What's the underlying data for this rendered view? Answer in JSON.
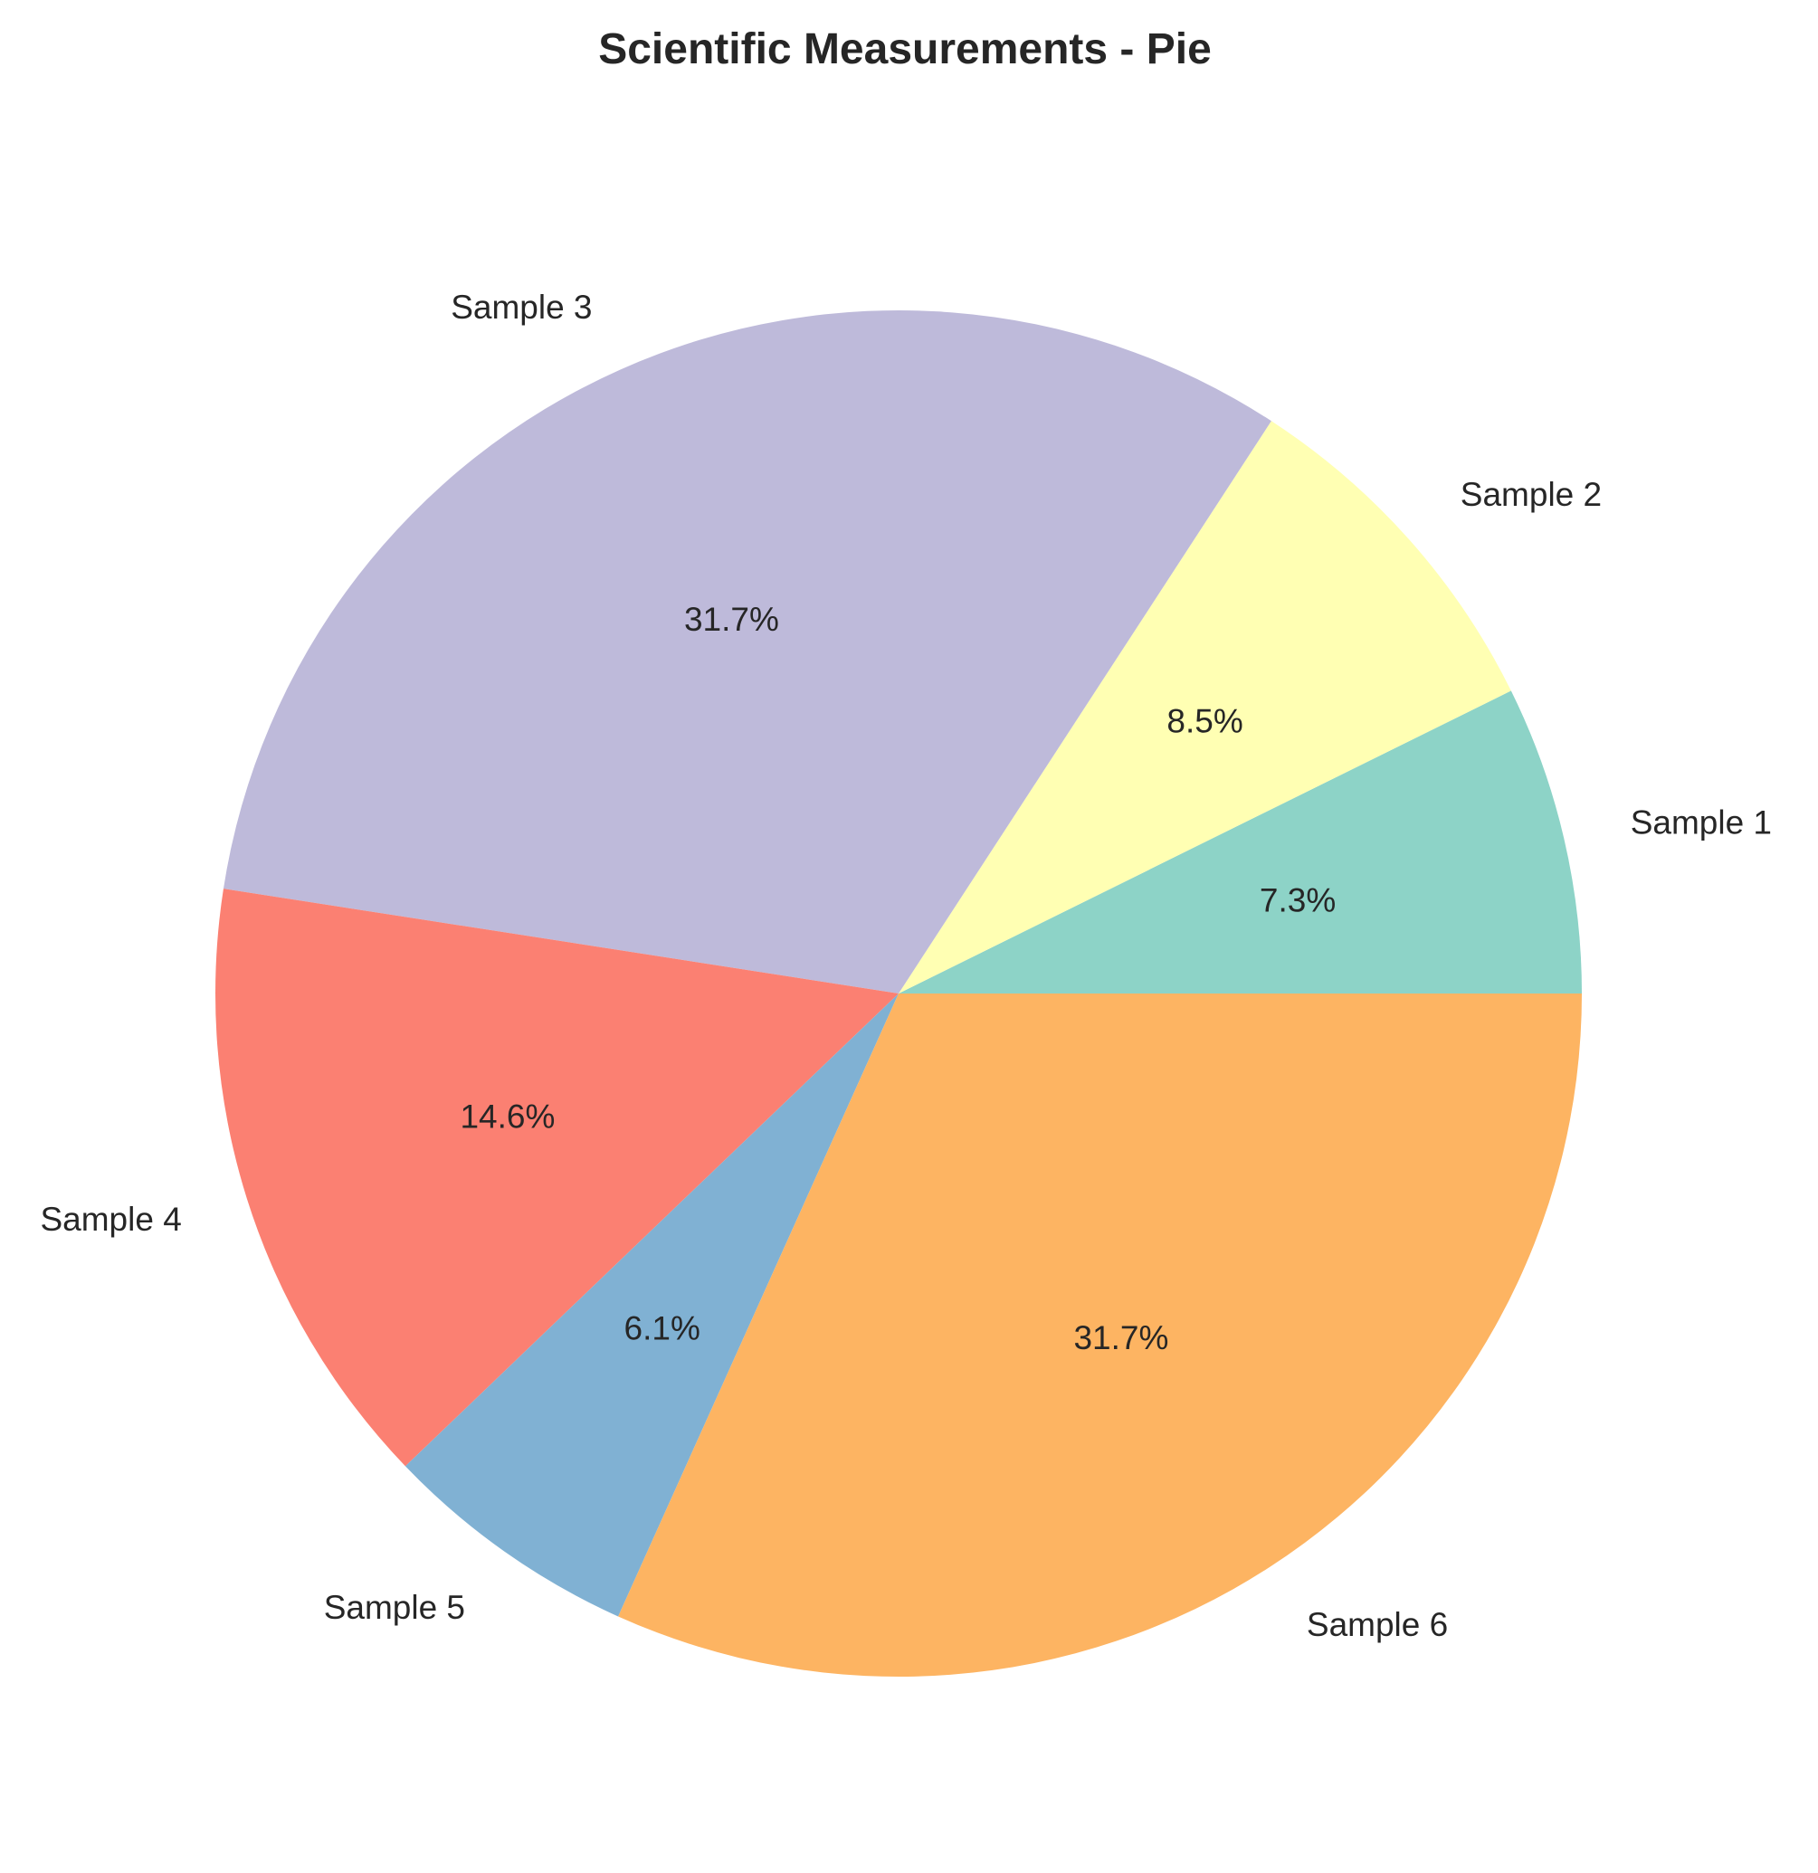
{
  "chart_data": {
    "type": "pie",
    "title": "Scientific Measurements - Pie",
    "categories": [
      "Sample 1",
      "Sample 2",
      "Sample 3",
      "Sample 4",
      "Sample 5",
      "Sample 6"
    ],
    "values": [
      7.3,
      8.5,
      31.7,
      14.6,
      6.1,
      31.7
    ],
    "value_labels": [
      "7.3%",
      "8.5%",
      "31.7%",
      "14.6%",
      "6.1%",
      "31.7%"
    ],
    "colors": [
      "#8dd3c7",
      "#ffffb3",
      "#bebada",
      "#fb8072",
      "#80b1d3",
      "#fdb462"
    ],
    "start_angle_deg": 0,
    "direction": "counterclockwise",
    "legend": "none"
  }
}
